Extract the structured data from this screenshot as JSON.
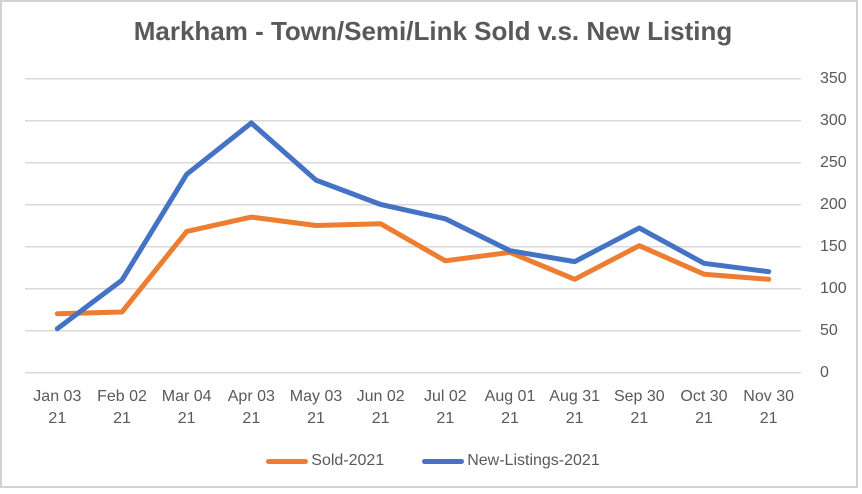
{
  "chart_data": {
    "type": "line",
    "title": "Markham - Town/Semi/Link Sold v.s. New Listing",
    "categories": [
      "Jan 03",
      "Feb 02",
      "Mar 04",
      "Apr 03",
      "May 03",
      "Jun 02",
      "Jul 02",
      "Aug 01",
      "Aug 31",
      "Sep 30",
      "Oct 30",
      "Nov 30"
    ],
    "category_year_line": "21",
    "series": [
      {
        "name": "Sold-2021",
        "color": "#ED7D31",
        "values": [
          70,
          72,
          168,
          185,
          175,
          177,
          133,
          143,
          111,
          151,
          117,
          111
        ]
      },
      {
        "name": "New-Listings-2021",
        "color": "#4472C4",
        "values": [
          52,
          110,
          236,
          297,
          229,
          200,
          183,
          145,
          132,
          172,
          130,
          120
        ]
      }
    ],
    "y_axis": {
      "min": 0,
      "max": 350,
      "step": 50,
      "side": "right",
      "tick_labels": [
        "350",
        "300",
        "250",
        "200",
        "150",
        "100",
        "50",
        "0"
      ]
    },
    "grid": true,
    "legend_position": "bottom",
    "colors": {
      "grid": "#D9D9D9",
      "text": "#595959",
      "background": "#FFFFFF",
      "frame_border": "#D2D2D2"
    }
  }
}
